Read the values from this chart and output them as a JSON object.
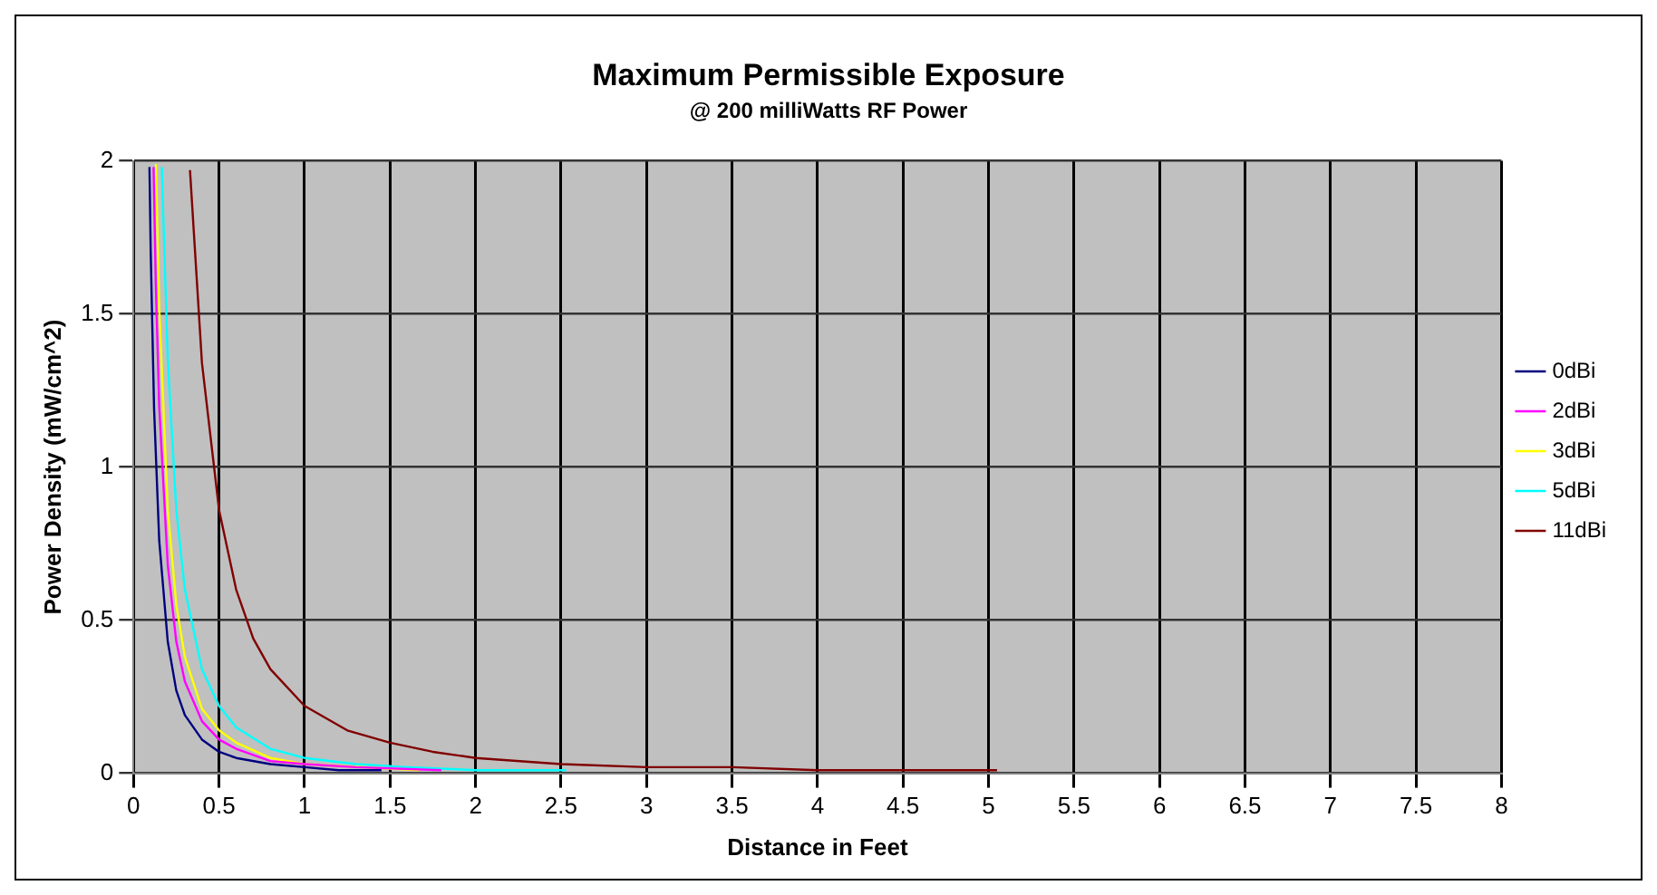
{
  "chart_data": {
    "type": "line",
    "title": "Maximum Permissible Exposure",
    "subtitle": "@ 200 milliWatts RF Power",
    "xlabel": "Distance in Feet",
    "ylabel": "Power Density (mW/cm^2)",
    "xlim": [
      0,
      8
    ],
    "xticks": [
      0,
      0.5,
      1,
      1.5,
      2,
      2.5,
      3,
      3.5,
      4,
      4.5,
      5,
      5.5,
      6,
      6.5,
      7,
      7.5,
      8
    ],
    "ylim": [
      0,
      2
    ],
    "yticks": [
      0,
      0.5,
      1,
      1.5,
      2
    ],
    "grid": true,
    "legend": "right",
    "marker": "none",
    "line_style": "solid",
    "series": [
      {
        "name": "0dBi",
        "color": "#000080",
        "x": [
          0.093,
          0.1,
          0.12,
          0.15,
          0.2,
          0.25,
          0.3,
          0.4,
          0.5,
          0.6,
          0.8,
          1.0,
          1.2,
          1.45
        ],
        "values": [
          1.98,
          1.71,
          1.19,
          0.76,
          0.43,
          0.27,
          0.19,
          0.11,
          0.07,
          0.05,
          0.03,
          0.02,
          0.01,
          0.01
        ]
      },
      {
        "name": "2dBi",
        "color": "#ff00ff",
        "x": [
          0.117,
          0.13,
          0.15,
          0.2,
          0.25,
          0.3,
          0.4,
          0.5,
          0.6,
          0.8,
          1.0,
          1.3,
          1.8
        ],
        "values": [
          1.98,
          1.6,
          1.2,
          0.68,
          0.43,
          0.3,
          0.17,
          0.11,
          0.08,
          0.04,
          0.03,
          0.02,
          0.01
        ]
      },
      {
        "name": "3dBi",
        "color": "#ffff00",
        "x": [
          0.131,
          0.15,
          0.2,
          0.25,
          0.3,
          0.4,
          0.5,
          0.6,
          0.8,
          1.0,
          1.67
        ],
        "values": [
          1.99,
          1.52,
          0.86,
          0.55,
          0.38,
          0.21,
          0.14,
          0.1,
          0.05,
          0.03,
          0.01
        ]
      },
      {
        "name": "5dBi",
        "color": "#00ffff",
        "x": [
          0.165,
          0.2,
          0.25,
          0.3,
          0.4,
          0.5,
          0.6,
          0.8,
          1.0,
          1.3,
          1.6,
          2.0,
          2.53
        ],
        "values": [
          1.98,
          1.35,
          0.86,
          0.6,
          0.34,
          0.22,
          0.15,
          0.08,
          0.05,
          0.03,
          0.02,
          0.01,
          0.01
        ]
      },
      {
        "name": "11dBi",
        "color": "#800000",
        "x": [
          0.33,
          0.4,
          0.5,
          0.6,
          0.7,
          0.8,
          1.0,
          1.25,
          1.5,
          1.75,
          2.0,
          2.5,
          3.0,
          3.5,
          4.0,
          5.05
        ],
        "values": [
          1.97,
          1.34,
          0.86,
          0.6,
          0.44,
          0.34,
          0.22,
          0.14,
          0.1,
          0.07,
          0.05,
          0.03,
          0.02,
          0.02,
          0.01,
          0.01
        ]
      }
    ]
  }
}
